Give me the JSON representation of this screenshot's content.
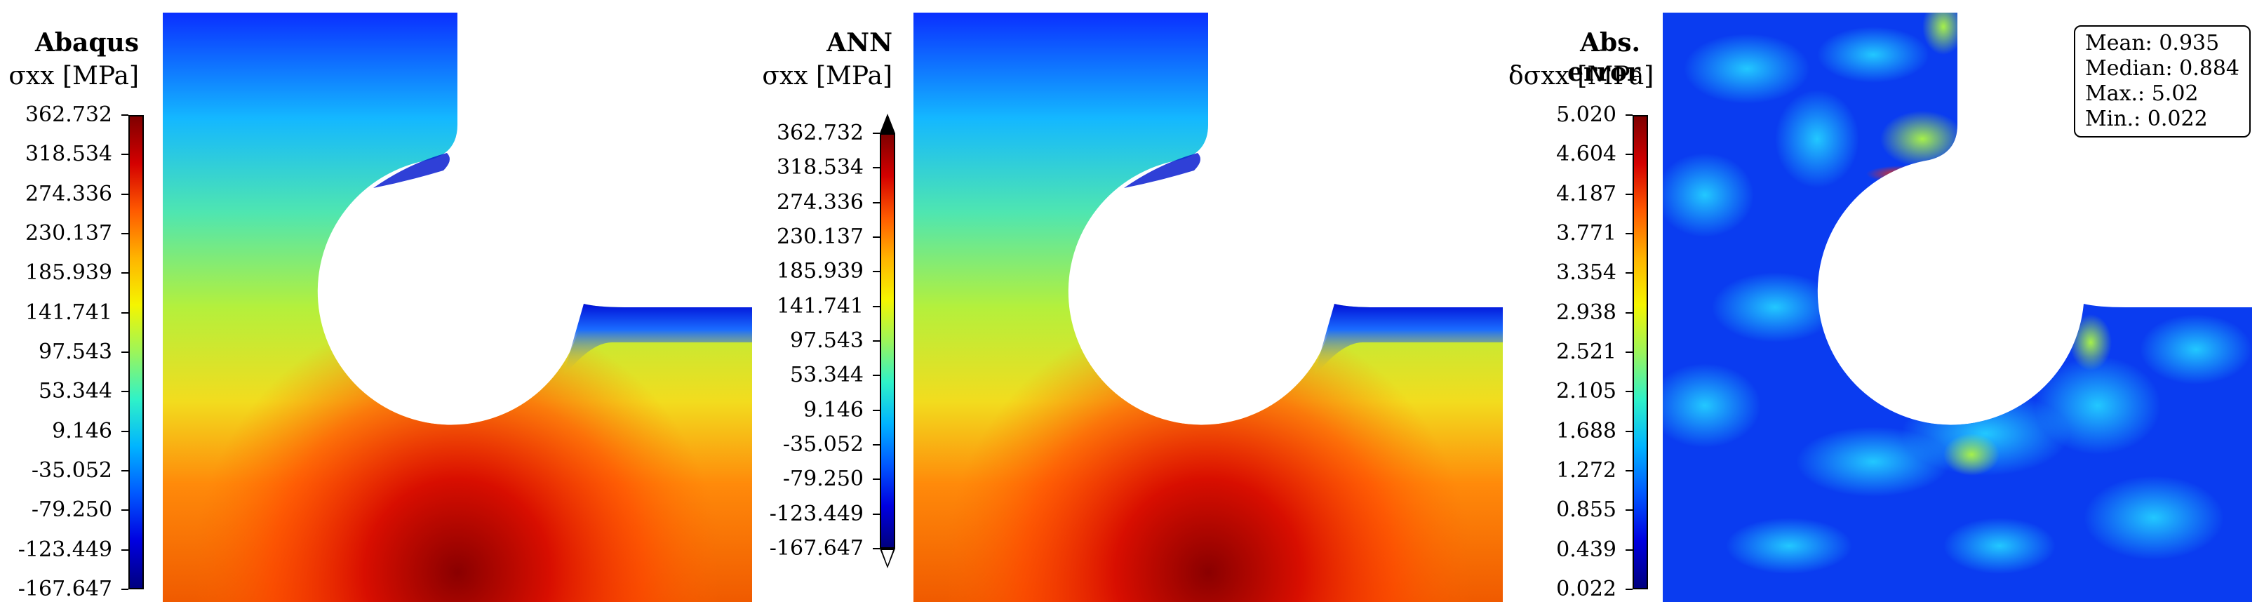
{
  "panels": [
    {
      "title": "Abaqus",
      "subtitle": "σxx [MPa]",
      "ticks": [
        "362.732",
        "318.534",
        "274.336",
        "230.137",
        "185.939",
        "141.741",
        "97.543",
        "53.344",
        "9.146",
        "-35.052",
        "-79.250",
        "-123.449",
        "-167.647"
      ]
    },
    {
      "title": "ANN",
      "subtitle": "σxx [MPa]",
      "ticks": [
        "362.732",
        "318.534",
        "274.336",
        "230.137",
        "185.939",
        "141.741",
        "97.543",
        "53.344",
        "9.146",
        "-35.052",
        "-79.250",
        "-123.449",
        "-167.647"
      ]
    },
    {
      "title": "Abs. error",
      "subtitle": "δσxx [MPa]",
      "ticks": [
        "5.020",
        "4.604",
        "4.187",
        "3.771",
        "3.354",
        "2.938",
        "2.521",
        "2.105",
        "1.688",
        "1.272",
        "0.855",
        "0.439",
        "0.022"
      ]
    }
  ],
  "stats": {
    "mean": "Mean: 0.935",
    "median": "Median: 0.884",
    "max": "Max.: 5.02",
    "min": "Min.: 0.022"
  },
  "colors": {
    "high": "#7f0000",
    "mid": "#f5f500",
    "low": "#00007f",
    "background": "#ffffff"
  }
}
